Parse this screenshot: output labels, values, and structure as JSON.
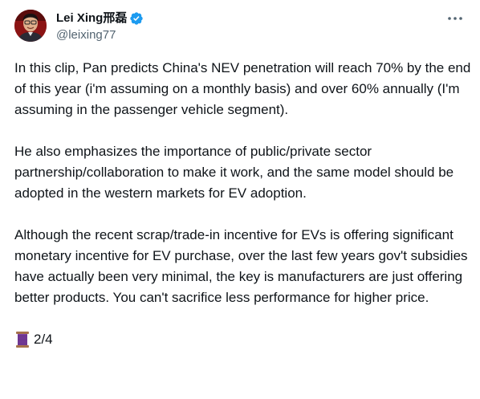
{
  "author": {
    "display_name": "Lei Xing邢磊",
    "handle": "@leixing77",
    "verified": true,
    "verified_color": "#1d9bf0",
    "avatar_icon": "profile-photo"
  },
  "menu": {
    "icon": "more-horizontal-icon"
  },
  "tweet": {
    "paragraphs": [
      "In this clip, Pan predicts China's NEV penetration will reach 70% by the end of this year (i'm assuming on a monthly basis) and over 60% annually (I'm assuming in the passenger vehicle segment).",
      "He also emphasizes the importance of public/private sector partnership/collaboration to make it work, and the same model should be adopted in the western markets for EV adoption.",
      "Although the recent scrap/trade-in incentive for EVs is offering significant monetary incentive for EV purchase, over the last few years gov't subsidies have actually been very minimal, the key is manufacturers are just offering better products. You can't sacrifice less performance for higher price."
    ],
    "thread_emoji": "thread-spool-icon",
    "thread_position": "2/4"
  },
  "colors": {
    "text": "#0f1419",
    "secondary": "#536471",
    "accent": "#1d9bf0"
  }
}
